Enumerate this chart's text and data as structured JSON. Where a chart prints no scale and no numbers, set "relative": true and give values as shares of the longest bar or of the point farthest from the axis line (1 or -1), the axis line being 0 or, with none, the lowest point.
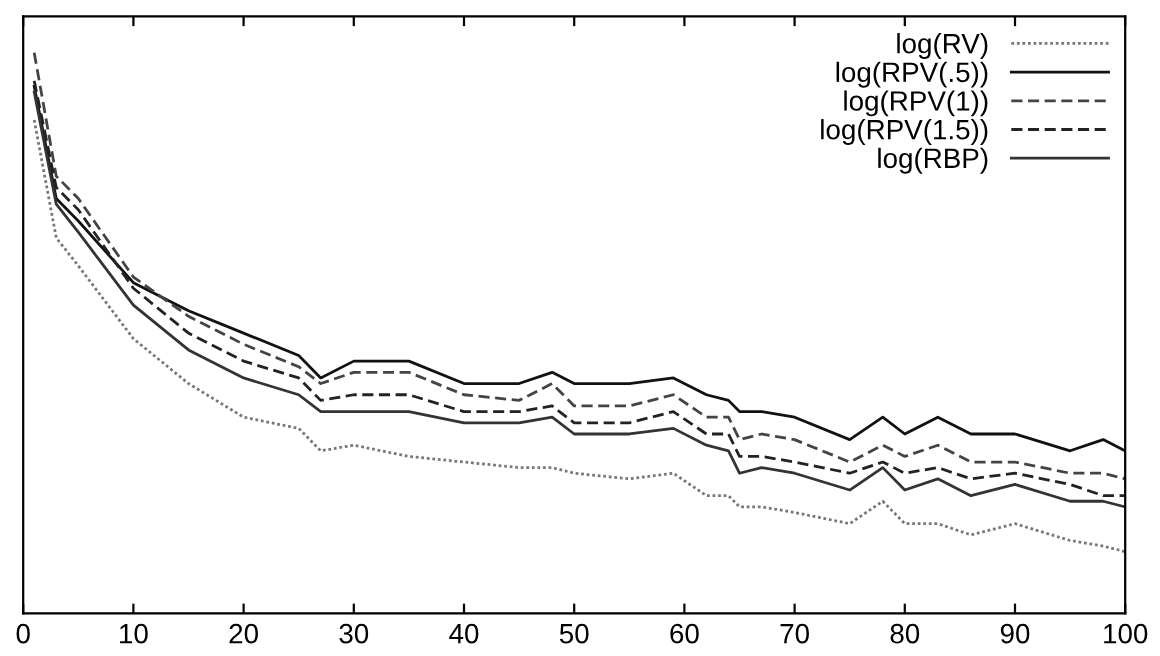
{
  "chart_data": {
    "type": "line",
    "relative": true,
    "xlim": [
      0,
      100
    ],
    "xticks": [
      0,
      10,
      20,
      30,
      40,
      50,
      60,
      70,
      80,
      90,
      100
    ],
    "grid": false,
    "legend": "top right",
    "tick_labels": "x",
    "x": [
      1,
      3,
      5,
      10,
      15,
      20,
      25,
      27,
      30,
      35,
      40,
      45,
      48,
      50,
      55,
      59,
      62,
      64,
      65,
      67,
      70,
      75,
      78,
      80,
      83,
      86,
      90,
      95,
      98,
      100
    ],
    "series": [
      {
        "name": "log(RV)",
        "color": "#777777",
        "line_style": "dotted",
        "values": [
          0.88,
          0.67,
          0.62,
          0.49,
          0.41,
          0.35,
          0.33,
          0.29,
          0.3,
          0.28,
          0.27,
          0.26,
          0.26,
          0.25,
          0.24,
          0.25,
          0.21,
          0.21,
          0.19,
          0.19,
          0.18,
          0.16,
          0.2,
          0.16,
          0.16,
          0.14,
          0.16,
          0.13,
          0.12,
          0.11
        ]
      },
      {
        "name": "log(RPV(.5))",
        "color": "#111111",
        "line_style": "solid",
        "values": [
          0.94,
          0.74,
          0.7,
          0.59,
          0.54,
          0.5,
          0.46,
          0.42,
          0.45,
          0.45,
          0.41,
          0.41,
          0.43,
          0.41,
          0.41,
          0.42,
          0.39,
          0.38,
          0.36,
          0.36,
          0.35,
          0.31,
          0.35,
          0.32,
          0.35,
          0.32,
          0.32,
          0.29,
          0.31,
          0.29
        ]
      },
      {
        "name": "log(RPV(1))",
        "color": "#444444",
        "line_style": "dashed",
        "values": [
          1,
          0.78,
          0.74,
          0.6,
          0.53,
          0.48,
          0.44,
          0.41,
          0.43,
          0.43,
          0.39,
          0.38,
          0.41,
          0.37,
          0.37,
          0.39,
          0.35,
          0.35,
          0.31,
          0.32,
          0.31,
          0.27,
          0.3,
          0.28,
          0.3,
          0.27,
          0.27,
          0.25,
          0.25,
          0.24
        ]
      },
      {
        "name": "log(RPV(1.5))",
        "color": "#222222",
        "line_style": "dashed",
        "values": [
          0.95,
          0.76,
          0.72,
          0.58,
          0.5,
          0.45,
          0.42,
          0.38,
          0.39,
          0.39,
          0.36,
          0.36,
          0.37,
          0.34,
          0.34,
          0.36,
          0.32,
          0.32,
          0.28,
          0.28,
          0.27,
          0.25,
          0.27,
          0.25,
          0.26,
          0.24,
          0.25,
          0.23,
          0.21,
          0.21
        ]
      },
      {
        "name": "log(RBP)",
        "color": "#333333",
        "line_style": "solid",
        "values": [
          0.93,
          0.73,
          0.68,
          0.55,
          0.47,
          0.42,
          0.39,
          0.36,
          0.36,
          0.36,
          0.34,
          0.34,
          0.35,
          0.32,
          0.32,
          0.33,
          0.3,
          0.29,
          0.25,
          0.26,
          0.25,
          0.22,
          0.26,
          0.22,
          0.24,
          0.21,
          0.23,
          0.2,
          0.2,
          0.19
        ]
      }
    ]
  }
}
